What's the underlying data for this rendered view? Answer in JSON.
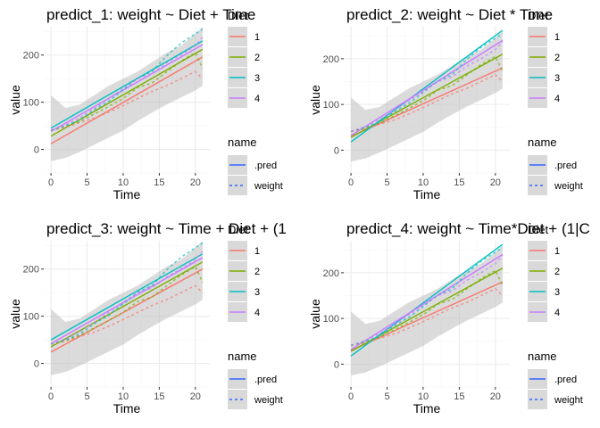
{
  "colors": {
    "diet": {
      "1": "#F8766D",
      "2": "#7CAE00",
      "3": "#00BFC4",
      "4": "#C77CFF"
    },
    "panel_bg": "#ffffff",
    "grid_major": "#ebebeb",
    "grid_minor": "#f5f5f5",
    "ribbon": "#bdbdbd",
    "legend_key_bg": "#d9d9d9",
    "pred_line": "#3366FF"
  },
  "chart_data": [
    {
      "type": "line",
      "title": "predict_1: weight ~ Diet + Time",
      "xlabel": "Time",
      "ylabel": "value",
      "xlim": [
        -1,
        22
      ],
      "ylim": [
        -50,
        260
      ],
      "x_ticks": [
        "0",
        "5",
        "10",
        "15",
        "20"
      ],
      "y_ticks": [
        "0",
        "100",
        "200"
      ],
      "grid": true,
      "legend_position": "right",
      "legends": [
        {
          "title": "Diet",
          "entries": [
            "1",
            "2",
            "3",
            "4"
          ]
        },
        {
          "title": "name",
          "entries": [
            ".pred",
            "weight"
          ]
        }
      ],
      "series": [
        {
          "diet": "1",
          "kind": "pred",
          "x": [
            0,
            21
          ],
          "y": [
            12,
            196
          ]
        },
        {
          "diet": "2",
          "kind": "pred",
          "x": [
            0,
            21
          ],
          "y": [
            28,
            212
          ]
        },
        {
          "diet": "3",
          "kind": "pred",
          "x": [
            0,
            21
          ],
          "y": [
            45,
            230
          ]
        },
        {
          "diet": "4",
          "kind": "pred",
          "x": [
            0,
            21
          ],
          "y": [
            38,
            222
          ]
        },
        {
          "diet": "1",
          "kind": "weight",
          "x": [
            0,
            2,
            4,
            6,
            8,
            10,
            12,
            14,
            16,
            18,
            20,
            21
          ],
          "y": [
            41,
            47,
            57,
            66,
            79,
            93,
            108,
            123,
            135,
            150,
            165,
            150
          ]
        },
        {
          "diet": "2",
          "kind": "weight",
          "x": [
            0,
            2,
            4,
            6,
            8,
            10,
            12,
            14,
            16,
            18,
            20,
            21
          ],
          "y": [
            41,
            49,
            59,
            75,
            91,
            108,
            131,
            141,
            164,
            187,
            205,
            172
          ]
        },
        {
          "diet": "3",
          "kind": "weight",
          "x": [
            0,
            2,
            4,
            6,
            8,
            10,
            12,
            14,
            16,
            18,
            20,
            21
          ],
          "y": [
            41,
            50,
            62,
            84,
            102,
            126,
            151,
            165,
            198,
            225,
            245,
            255
          ]
        },
        {
          "diet": "4",
          "kind": "weight",
          "x": [
            0,
            2,
            4,
            6,
            8,
            10,
            12,
            14,
            16,
            18,
            20,
            21
          ],
          "y": [
            41,
            52,
            67,
            87,
            108,
            129,
            150,
            160,
            183,
            200,
            220,
            238
          ]
        }
      ],
      "ribbon": {
        "x": [
          0,
          2,
          4,
          6,
          8,
          10,
          12,
          14,
          16,
          18,
          20,
          21
        ],
        "lower": [
          -25,
          -18,
          -5,
          10,
          25,
          40,
          60,
          78,
          95,
          110,
          125,
          135
        ],
        "upper": [
          115,
          88,
          95,
          115,
          135,
          150,
          165,
          185,
          205,
          220,
          245,
          260
        ]
      }
    },
    {
      "type": "line",
      "title": "predict_2: weight ~ Diet * Time",
      "xlabel": "Time",
      "ylabel": "value",
      "xlim": [
        -1,
        22
      ],
      "ylim": [
        -50,
        270
      ],
      "x_ticks": [
        "0",
        "5",
        "10",
        "15",
        "20"
      ],
      "y_ticks": [
        "0",
        "100",
        "200"
      ],
      "grid": true,
      "legend_position": "right",
      "legends": [
        {
          "title": "Diet",
          "entries": [
            "1",
            "2",
            "3",
            "4"
          ]
        },
        {
          "title": "name",
          "entries": [
            ".pred",
            "weight"
          ]
        }
      ],
      "series": [
        {
          "diet": "1",
          "kind": "pred",
          "x": [
            0,
            21
          ],
          "y": [
            30,
            180
          ]
        },
        {
          "diet": "2",
          "kind": "pred",
          "x": [
            0,
            21
          ],
          "y": [
            28,
            210
          ]
        },
        {
          "diet": "3",
          "kind": "pred",
          "x": [
            0,
            21
          ],
          "y": [
            18,
            262
          ]
        },
        {
          "diet": "4",
          "kind": "pred",
          "x": [
            0,
            21
          ],
          "y": [
            32,
            240
          ]
        },
        {
          "diet": "1",
          "kind": "weight",
          "x": [
            0,
            2,
            4,
            6,
            8,
            10,
            12,
            14,
            16,
            18,
            20,
            21
          ],
          "y": [
            41,
            47,
            57,
            66,
            79,
            93,
            108,
            123,
            135,
            150,
            165,
            150
          ]
        },
        {
          "diet": "2",
          "kind": "weight",
          "x": [
            0,
            2,
            4,
            6,
            8,
            10,
            12,
            14,
            16,
            18,
            20,
            21
          ],
          "y": [
            41,
            49,
            59,
            75,
            91,
            108,
            131,
            141,
            164,
            187,
            205,
            172
          ]
        },
        {
          "diet": "3",
          "kind": "weight",
          "x": [
            0,
            2,
            4,
            6,
            8,
            10,
            12,
            14,
            16,
            18,
            20,
            21
          ],
          "y": [
            41,
            50,
            62,
            84,
            102,
            126,
            151,
            165,
            198,
            225,
            245,
            255
          ]
        },
        {
          "diet": "4",
          "kind": "weight",
          "x": [
            0,
            2,
            4,
            6,
            8,
            10,
            12,
            14,
            16,
            18,
            20,
            21
          ],
          "y": [
            41,
            52,
            67,
            87,
            108,
            129,
            150,
            160,
            183,
            200,
            220,
            238
          ]
        }
      ],
      "ribbon": {
        "x": [
          0,
          2,
          4,
          6,
          8,
          10,
          12,
          14,
          16,
          18,
          20,
          21
        ],
        "lower": [
          -25,
          -18,
          -5,
          10,
          25,
          40,
          60,
          78,
          95,
          110,
          125,
          135
        ],
        "upper": [
          115,
          88,
          95,
          115,
          135,
          150,
          165,
          185,
          205,
          220,
          245,
          260
        ]
      }
    },
    {
      "type": "line",
      "title": "predict_3: weight ~ Time + Diet + (1",
      "xlabel": "Time",
      "ylabel": "value",
      "xlim": [
        -1,
        22
      ],
      "ylim": [
        -50,
        260
      ],
      "x_ticks": [
        "0",
        "5",
        "10",
        "15",
        "20"
      ],
      "y_ticks": [
        "0",
        "100",
        "200"
      ],
      "grid": true,
      "legend_position": "right",
      "legends": [
        {
          "title": "Diet",
          "entries": [
            "1",
            "2",
            "3",
            "4"
          ]
        },
        {
          "title": "name",
          "entries": [
            ".pred",
            "weight"
          ]
        }
      ],
      "series": [
        {
          "diet": "1",
          "kind": "pred",
          "x": [
            0,
            21
          ],
          "y": [
            24,
            200
          ]
        },
        {
          "diet": "2",
          "kind": "pred",
          "x": [
            0,
            21
          ],
          "y": [
            35,
            215
          ]
        },
        {
          "diet": "3",
          "kind": "pred",
          "x": [
            0,
            21
          ],
          "y": [
            50,
            232
          ]
        },
        {
          "diet": "4",
          "kind": "pred",
          "x": [
            0,
            21
          ],
          "y": [
            42,
            224
          ]
        },
        {
          "diet": "1",
          "kind": "weight",
          "x": [
            0,
            2,
            4,
            6,
            8,
            10,
            12,
            14,
            16,
            18,
            20,
            21
          ],
          "y": [
            41,
            47,
            57,
            66,
            79,
            93,
            108,
            123,
            135,
            150,
            165,
            150
          ]
        },
        {
          "diet": "2",
          "kind": "weight",
          "x": [
            0,
            2,
            4,
            6,
            8,
            10,
            12,
            14,
            16,
            18,
            20,
            21
          ],
          "y": [
            41,
            49,
            59,
            75,
            91,
            108,
            131,
            141,
            164,
            187,
            205,
            172
          ]
        },
        {
          "diet": "3",
          "kind": "weight",
          "x": [
            0,
            2,
            4,
            6,
            8,
            10,
            12,
            14,
            16,
            18,
            20,
            21
          ],
          "y": [
            41,
            50,
            62,
            84,
            102,
            126,
            151,
            165,
            198,
            225,
            245,
            255
          ]
        },
        {
          "diet": "4",
          "kind": "weight",
          "x": [
            0,
            2,
            4,
            6,
            8,
            10,
            12,
            14,
            16,
            18,
            20,
            21
          ],
          "y": [
            41,
            52,
            67,
            87,
            108,
            129,
            150,
            160,
            183,
            200,
            220,
            238
          ]
        }
      ],
      "ribbon": {
        "x": [
          0,
          2,
          4,
          6,
          8,
          10,
          12,
          14,
          16,
          18,
          20,
          21
        ],
        "lower": [
          -25,
          -18,
          -5,
          10,
          25,
          40,
          60,
          78,
          95,
          110,
          125,
          135
        ],
        "upper": [
          115,
          88,
          95,
          115,
          135,
          150,
          165,
          185,
          205,
          220,
          245,
          260
        ]
      }
    },
    {
      "type": "line",
      "title": "predict_4: weight ~ Time*Diet + (1|C",
      "xlabel": "Time",
      "ylabel": "value",
      "xlim": [
        -1,
        22
      ],
      "ylim": [
        -50,
        270
      ],
      "x_ticks": [
        "0",
        "5",
        "10",
        "15",
        "20"
      ],
      "y_ticks": [
        "0",
        "100",
        "200"
      ],
      "grid": true,
      "legend_position": "right",
      "legends": [
        {
          "title": "Diet",
          "entries": [
            "1",
            "2",
            "3",
            "4"
          ]
        },
        {
          "title": "name",
          "entries": [
            ".pred",
            "weight"
          ]
        }
      ],
      "series": [
        {
          "diet": "1",
          "kind": "pred",
          "x": [
            0,
            21
          ],
          "y": [
            30,
            180
          ]
        },
        {
          "diet": "2",
          "kind": "pred",
          "x": [
            0,
            21
          ],
          "y": [
            28,
            210
          ]
        },
        {
          "diet": "3",
          "kind": "pred",
          "x": [
            0,
            21
          ],
          "y": [
            18,
            262
          ]
        },
        {
          "diet": "4",
          "kind": "pred",
          "x": [
            0,
            21
          ],
          "y": [
            32,
            240
          ]
        },
        {
          "diet": "1",
          "kind": "weight",
          "x": [
            0,
            2,
            4,
            6,
            8,
            10,
            12,
            14,
            16,
            18,
            20,
            21
          ],
          "y": [
            41,
            47,
            57,
            66,
            79,
            93,
            108,
            123,
            135,
            150,
            165,
            150
          ]
        },
        {
          "diet": "2",
          "kind": "weight",
          "x": [
            0,
            2,
            4,
            6,
            8,
            10,
            12,
            14,
            16,
            18,
            20,
            21
          ],
          "y": [
            41,
            49,
            59,
            75,
            91,
            108,
            131,
            141,
            164,
            187,
            205,
            172
          ]
        },
        {
          "diet": "3",
          "kind": "weight",
          "x": [
            0,
            2,
            4,
            6,
            8,
            10,
            12,
            14,
            16,
            18,
            20,
            21
          ],
          "y": [
            41,
            50,
            62,
            84,
            102,
            126,
            151,
            165,
            198,
            225,
            245,
            255
          ]
        },
        {
          "diet": "4",
          "kind": "weight",
          "x": [
            0,
            2,
            4,
            6,
            8,
            10,
            12,
            14,
            16,
            18,
            20,
            21
          ],
          "y": [
            41,
            52,
            67,
            87,
            108,
            129,
            150,
            160,
            183,
            200,
            220,
            238
          ]
        }
      ],
      "ribbon": {
        "x": [
          0,
          2,
          4,
          6,
          8,
          10,
          12,
          14,
          16,
          18,
          20,
          21
        ],
        "lower": [
          -25,
          -18,
          -5,
          10,
          25,
          40,
          60,
          78,
          95,
          110,
          125,
          135
        ],
        "upper": [
          115,
          88,
          95,
          115,
          135,
          150,
          165,
          185,
          205,
          220,
          245,
          260
        ]
      }
    }
  ]
}
